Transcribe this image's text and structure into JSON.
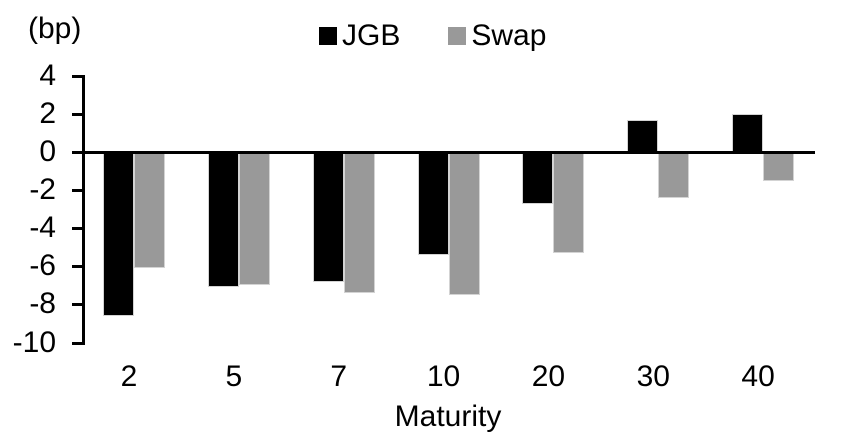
{
  "chart_data": {
    "type": "bar",
    "unit_label": "(bp)",
    "xlabel": "Maturity",
    "categories": [
      "2",
      "5",
      "7",
      "10",
      "20",
      "30",
      "40"
    ],
    "series": [
      {
        "name": "JGB",
        "color": "#000000",
        "values": [
          -8.6,
          -7.1,
          -6.8,
          -5.4,
          -2.7,
          1.7,
          2.0
        ]
      },
      {
        "name": "Swap",
        "color": "#999999",
        "values": [
          -6.1,
          -7.0,
          -7.4,
          -7.5,
          -5.3,
          -2.4,
          -1.5
        ]
      }
    ],
    "ylim": [
      -10,
      4
    ],
    "ytick_step": 2,
    "yticks": [
      4,
      2,
      0,
      -2,
      -4,
      -6,
      -8,
      -10
    ],
    "legend_position": "top-center",
    "grid": false,
    "axis_color": "#000000",
    "bar_edge_color": "#d3d3d3",
    "background": "#ffffff"
  }
}
